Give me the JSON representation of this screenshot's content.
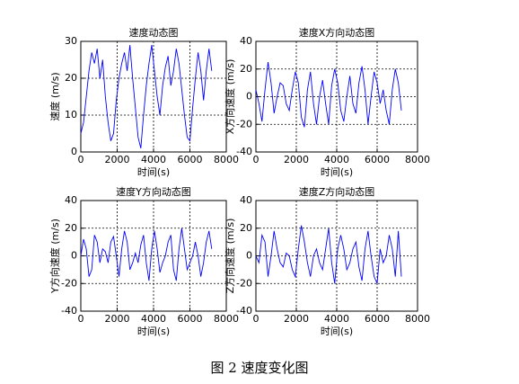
{
  "chart_data": [
    {
      "type": "line",
      "title": "速度动态图",
      "x_label": "时间(s)",
      "y_label": "速度 (m/s)",
      "x": [
        0,
        150,
        300,
        450,
        600,
        750,
        900,
        1050,
        1200,
        1350,
        1500,
        1650,
        1800,
        1950,
        2100,
        2250,
        2400,
        2550,
        2700,
        2850,
        3000,
        3150,
        3300,
        3450,
        3600,
        3750,
        3900,
        4050,
        4200,
        4350,
        4500,
        4650,
        4800,
        4950,
        5100,
        5250,
        5400,
        5550,
        5700,
        5850,
        6000,
        6150,
        6300,
        6450,
        6600,
        6750,
        6900,
        7050,
        7200
      ],
      "values": [
        5,
        8,
        15,
        22,
        27,
        24,
        28,
        20,
        25,
        15,
        8,
        3,
        5,
        14,
        20,
        24,
        27,
        22,
        29,
        20,
        12,
        4,
        1,
        10,
        18,
        24,
        29,
        22,
        15,
        10,
        18,
        23,
        26,
        18,
        22,
        28,
        24,
        17,
        10,
        4,
        3,
        12,
        20,
        27,
        22,
        14,
        22,
        28,
        22
      ],
      "color": "#0000ff",
      "xlim": [
        0,
        8000
      ],
      "xticks": [
        0,
        2000,
        4000,
        6000,
        8000
      ],
      "ylim": [
        0,
        30
      ],
      "yticks": [
        0,
        10,
        20,
        30
      ],
      "grid": true
    },
    {
      "type": "line",
      "title": "速度X方向动态图",
      "x_label": "时间(s)",
      "y_label": "X方向速度 (m/s)",
      "x": [
        0,
        150,
        300,
        450,
        600,
        750,
        900,
        1050,
        1200,
        1350,
        1500,
        1650,
        1800,
        1950,
        2100,
        2250,
        2400,
        2550,
        2700,
        2850,
        3000,
        3150,
        3300,
        3450,
        3600,
        3750,
        3900,
        4050,
        4200,
        4350,
        4500,
        4650,
        4800,
        4950,
        5100,
        5250,
        5400,
        5550,
        5700,
        5850,
        6000,
        6150,
        6300,
        6450,
        6600,
        6750,
        6900,
        7050,
        7200
      ],
      "values": [
        5,
        -5,
        -18,
        5,
        25,
        10,
        -12,
        0,
        10,
        8,
        -5,
        -10,
        5,
        18,
        10,
        -15,
        -22,
        5,
        18,
        -5,
        -20,
        0,
        12,
        -5,
        -20,
        8,
        20,
        10,
        -10,
        -18,
        0,
        15,
        -5,
        -12,
        10,
        22,
        5,
        -20,
        0,
        18,
        10,
        -5,
        5,
        -10,
        -20,
        5,
        20,
        10,
        -10
      ],
      "color": "#0000ff",
      "xlim": [
        0,
        8000
      ],
      "xticks": [
        0,
        2000,
        4000,
        6000,
        8000
      ],
      "ylim": [
        -40,
        40
      ],
      "yticks": [
        -40,
        -20,
        0,
        20,
        40
      ],
      "grid": true
    },
    {
      "type": "line",
      "title": "速度Y方向动态图",
      "x_label": "时间(s)",
      "y_label": "Y方向速度 (m/s)",
      "x": [
        0,
        150,
        300,
        450,
        600,
        750,
        900,
        1050,
        1200,
        1350,
        1500,
        1650,
        1800,
        1950,
        2100,
        2250,
        2400,
        2550,
        2700,
        2850,
        3000,
        3150,
        3300,
        3450,
        3600,
        3750,
        3900,
        4050,
        4200,
        4350,
        4500,
        4650,
        4800,
        4950,
        5100,
        5250,
        5400,
        5550,
        5700,
        5850,
        6000,
        6150,
        6300,
        6450,
        6600,
        6750,
        6900,
        7050,
        7200
      ],
      "values": [
        0,
        12,
        5,
        -15,
        -10,
        15,
        10,
        -5,
        5,
        3,
        -5,
        10,
        14,
        0,
        -15,
        5,
        18,
        10,
        -10,
        -5,
        2,
        -5,
        8,
        15,
        -5,
        -18,
        5,
        18,
        5,
        -12,
        -5,
        0,
        10,
        15,
        -10,
        -18,
        5,
        20,
        5,
        -10,
        -5,
        0,
        10,
        0,
        -15,
        -5,
        10,
        18,
        5
      ],
      "color": "#0000ff",
      "xlim": [
        0,
        8000
      ],
      "xticks": [
        0,
        2000,
        4000,
        6000,
        8000
      ],
      "ylim": [
        -40,
        40
      ],
      "yticks": [
        -40,
        -20,
        0,
        20,
        40
      ],
      "grid": true
    },
    {
      "type": "line",
      "title": "速度Z方向动态图",
      "x_label": "时间(s)",
      "y_label": "Z方向速度 (m/s)",
      "x": [
        0,
        150,
        300,
        450,
        600,
        750,
        900,
        1050,
        1200,
        1350,
        1500,
        1650,
        1800,
        1950,
        2100,
        2250,
        2400,
        2550,
        2700,
        2850,
        3000,
        3150,
        3300,
        3450,
        3600,
        3750,
        3900,
        4050,
        4200,
        4350,
        4500,
        4650,
        4800,
        4950,
        5100,
        5250,
        5400,
        5550,
        5700,
        5850,
        6000,
        6150,
        6300,
        6450,
        6600,
        6750,
        6900,
        7050,
        7200
      ],
      "values": [
        0,
        -5,
        15,
        10,
        -15,
        0,
        18,
        5,
        -5,
        -8,
        2,
        0,
        -10,
        -15,
        5,
        22,
        10,
        -5,
        -15,
        0,
        5,
        -5,
        -10,
        5,
        20,
        -5,
        -20,
        5,
        15,
        5,
        -10,
        -5,
        5,
        10,
        -8,
        -18,
        5,
        18,
        0,
        -15,
        -20,
        5,
        -5,
        0,
        15,
        5,
        -15,
        18,
        -15
      ],
      "color": "#0000ff",
      "xlim": [
        0,
        8000
      ],
      "xticks": [
        0,
        2000,
        4000,
        6000,
        8000
      ],
      "ylim": [
        -40,
        40
      ],
      "yticks": [
        -40,
        -20,
        0,
        20,
        40
      ],
      "grid": true
    }
  ],
  "caption": "图 2  速度变化图"
}
